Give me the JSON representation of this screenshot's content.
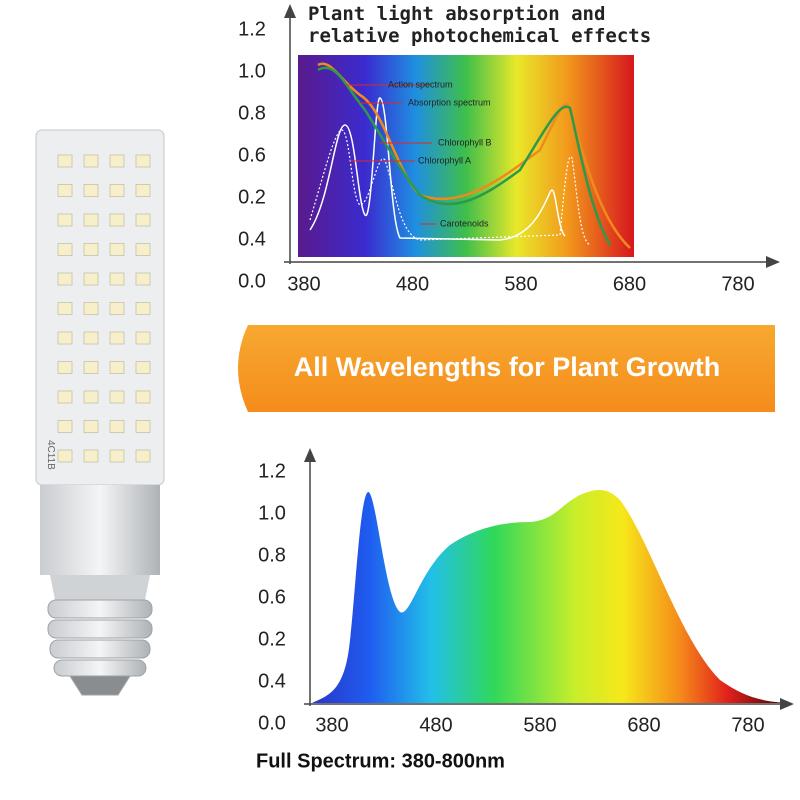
{
  "top_chart": {
    "title": [
      "Plant light absorption  and",
      "relative photochemical effects"
    ],
    "y_labels": [
      "1.2",
      "1.0",
      "0.8",
      "0.6",
      "0.2",
      "0.4",
      "0.0"
    ],
    "x_labels": [
      "380",
      "480",
      "580",
      "680",
      "780"
    ],
    "annotations": [
      "Action spectrum",
      "Absorption spectrum",
      "Chlorophyll B",
      "Chlorophyll A",
      "Carotenoids"
    ]
  },
  "banner": "All Wavelengths for Plant Growth",
  "bottom_chart": {
    "y_labels": [
      "1.2",
      "1.0",
      "0.8",
      "0.6",
      "0.2",
      "0.4",
      "0.0"
    ],
    "x_labels": [
      "380",
      "480",
      "580",
      "680",
      "780"
    ],
    "caption": "Full Spectrum: 380-800nm"
  },
  "bulb_label": "4C11B"
}
